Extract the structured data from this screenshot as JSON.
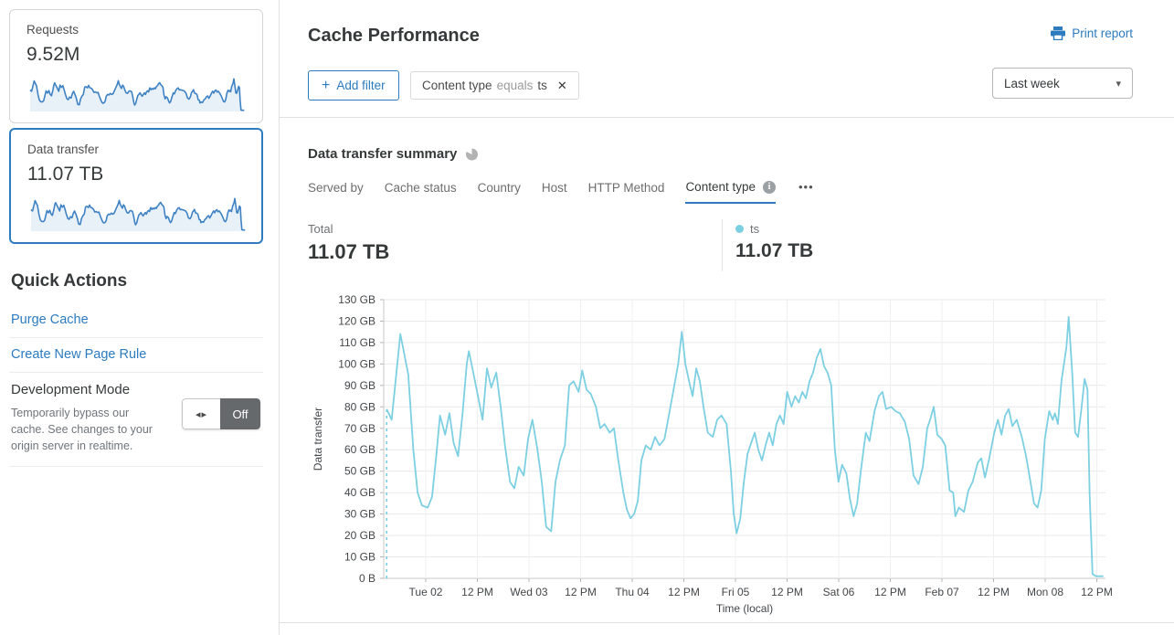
{
  "colors": {
    "accent": "#2c7bbf",
    "series_line": "#7dcfe2",
    "spark_line": "#3e82c4",
    "spark_fill": "#e9f1f8",
    "selected_card_border": "#2f7bbf"
  },
  "icons": {
    "plus": "+",
    "close": "✕",
    "caret": "▾",
    "more": "•••",
    "toggle_arrows": "◂▸",
    "info": "i"
  },
  "sidebar": {
    "cards": [
      {
        "label": "Requests",
        "value": "9.52M",
        "selected": false
      },
      {
        "label": "Data transfer",
        "value": "11.07 TB",
        "selected": true
      }
    ],
    "quick_actions": {
      "title": "Quick Actions",
      "links": [
        "Purge Cache",
        "Create New Page Rule"
      ],
      "dev_mode": {
        "title": "Development Mode",
        "description": "Temporarily bypass our cache. See changes to your origin server in realtime.",
        "toggle_state": "Off"
      }
    }
  },
  "header": {
    "title": "Cache Performance",
    "print_label": "Print report",
    "range_selector": "Last week"
  },
  "filters": {
    "add_label": "Add filter",
    "chips": [
      {
        "field": "Content type",
        "operator": "equals",
        "value": "ts"
      }
    ]
  },
  "summary": {
    "title": "Data transfer summary",
    "tabs": [
      {
        "label": "Served by"
      },
      {
        "label": "Cache status"
      },
      {
        "label": "Country"
      },
      {
        "label": "Host"
      },
      {
        "label": "HTTP Method"
      },
      {
        "label": "Content type",
        "active": true
      }
    ],
    "stats": [
      {
        "label": "Total",
        "value": "11.07 TB"
      },
      {
        "label": "ts",
        "value": "11.07 TB",
        "dot_color": "#7dcfe2"
      }
    ]
  },
  "chart_data": {
    "type": "line",
    "title": "Data transfer summary",
    "ylabel": "Data transfer",
    "xlabel": "Time (local)",
    "ylim": [
      0,
      130
    ],
    "grid": true,
    "legend_position": "top-right",
    "yticks": [
      "0 B",
      "10 GB",
      "20 GB",
      "30 GB",
      "40 GB",
      "50 GB",
      "60 GB",
      "70 GB",
      "80 GB",
      "90 GB",
      "100 GB",
      "110 GB",
      "120 GB",
      "130 GB"
    ],
    "xticks": [
      "Tue 02",
      "12 PM",
      "Wed 03",
      "12 PM",
      "Thu 04",
      "12 PM",
      "Fri 05",
      "12 PM",
      "Sat 06",
      "12 PM",
      "Feb 07",
      "12 PM",
      "Mon 08",
      "12 PM"
    ],
    "series": [
      {
        "name": "ts",
        "color": "#7dcfe2",
        "unit": "GB",
        "dashed_start": true,
        "points": [
          [
            0.004,
            79
          ],
          [
            0.011,
            74
          ],
          [
            0.023,
            114
          ],
          [
            0.034,
            95
          ],
          [
            0.041,
            60
          ],
          [
            0.047,
            40
          ],
          [
            0.053,
            34
          ],
          [
            0.061,
            33
          ],
          [
            0.067,
            38
          ],
          [
            0.073,
            58
          ],
          [
            0.078,
            76
          ],
          [
            0.085,
            67
          ],
          [
            0.091,
            77
          ],
          [
            0.097,
            63
          ],
          [
            0.103,
            57
          ],
          [
            0.109,
            76
          ],
          [
            0.115,
            100
          ],
          [
            0.118,
            106
          ],
          [
            0.124,
            96
          ],
          [
            0.13,
            86
          ],
          [
            0.137,
            74
          ],
          [
            0.143,
            98
          ],
          [
            0.149,
            89
          ],
          [
            0.156,
            96
          ],
          [
            0.162,
            80
          ],
          [
            0.168,
            62
          ],
          [
            0.175,
            45
          ],
          [
            0.181,
            42
          ],
          [
            0.187,
            52
          ],
          [
            0.194,
            48
          ],
          [
            0.2,
            65
          ],
          [
            0.206,
            74
          ],
          [
            0.213,
            60
          ],
          [
            0.219,
            45
          ],
          [
            0.225,
            24
          ],
          [
            0.232,
            22
          ],
          [
            0.238,
            45
          ],
          [
            0.244,
            55
          ],
          [
            0.251,
            62
          ],
          [
            0.257,
            90
          ],
          [
            0.263,
            92
          ],
          [
            0.27,
            87
          ],
          [
            0.275,
            97
          ],
          [
            0.281,
            88
          ],
          [
            0.287,
            86
          ],
          [
            0.294,
            80
          ],
          [
            0.3,
            70
          ],
          [
            0.306,
            72
          ],
          [
            0.313,
            68
          ],
          [
            0.319,
            70
          ],
          [
            0.325,
            55
          ],
          [
            0.332,
            40
          ],
          [
            0.337,
            32
          ],
          [
            0.342,
            28
          ],
          [
            0.347,
            30
          ],
          [
            0.352,
            36
          ],
          [
            0.357,
            55
          ],
          [
            0.363,
            62
          ],
          [
            0.37,
            60
          ],
          [
            0.376,
            66
          ],
          [
            0.382,
            62
          ],
          [
            0.389,
            65
          ],
          [
            0.395,
            76
          ],
          [
            0.401,
            87
          ],
          [
            0.408,
            100
          ],
          [
            0.413,
            115
          ],
          [
            0.418,
            100
          ],
          [
            0.423,
            92
          ],
          [
            0.428,
            85
          ],
          [
            0.433,
            98
          ],
          [
            0.438,
            92
          ],
          [
            0.443,
            80
          ],
          [
            0.449,
            68
          ],
          [
            0.456,
            66
          ],
          [
            0.462,
            74
          ],
          [
            0.468,
            76
          ],
          [
            0.475,
            72
          ],
          [
            0.481,
            50
          ],
          [
            0.485,
            30
          ],
          [
            0.489,
            21
          ],
          [
            0.494,
            28
          ],
          [
            0.499,
            45
          ],
          [
            0.504,
            58
          ],
          [
            0.509,
            63
          ],
          [
            0.514,
            68
          ],
          [
            0.519,
            60
          ],
          [
            0.524,
            55
          ],
          [
            0.529,
            62
          ],
          [
            0.534,
            68
          ],
          [
            0.539,
            62
          ],
          [
            0.544,
            72
          ],
          [
            0.549,
            76
          ],
          [
            0.554,
            72
          ],
          [
            0.559,
            87
          ],
          [
            0.565,
            80
          ],
          [
            0.57,
            85
          ],
          [
            0.575,
            82
          ],
          [
            0.58,
            87
          ],
          [
            0.585,
            84
          ],
          [
            0.59,
            92
          ],
          [
            0.595,
            96
          ],
          [
            0.6,
            103
          ],
          [
            0.605,
            107
          ],
          [
            0.61,
            99
          ],
          [
            0.615,
            96
          ],
          [
            0.62,
            90
          ],
          [
            0.625,
            60
          ],
          [
            0.63,
            45
          ],
          [
            0.635,
            53
          ],
          [
            0.641,
            49
          ],
          [
            0.646,
            37
          ],
          [
            0.651,
            29
          ],
          [
            0.656,
            35
          ],
          [
            0.661,
            50
          ],
          [
            0.666,
            63
          ],
          [
            0.668,
            68
          ],
          [
            0.673,
            64
          ],
          [
            0.68,
            78
          ],
          [
            0.686,
            85
          ],
          [
            0.691,
            87
          ],
          [
            0.696,
            79
          ],
          [
            0.703,
            80
          ],
          [
            0.709,
            78
          ],
          [
            0.715,
            77
          ],
          [
            0.722,
            73
          ],
          [
            0.728,
            65
          ],
          [
            0.734,
            48
          ],
          [
            0.741,
            44
          ],
          [
            0.747,
            52
          ],
          [
            0.753,
            70
          ],
          [
            0.758,
            75
          ],
          [
            0.762,
            80
          ],
          [
            0.767,
            67
          ],
          [
            0.773,
            65
          ],
          [
            0.778,
            62
          ],
          [
            0.784,
            41
          ],
          [
            0.789,
            40
          ],
          [
            0.792,
            29
          ],
          [
            0.797,
            33
          ],
          [
            0.804,
            31
          ],
          [
            0.81,
            41
          ],
          [
            0.816,
            45
          ],
          [
            0.823,
            54
          ],
          [
            0.828,
            56
          ],
          [
            0.833,
            47
          ],
          [
            0.839,
            56
          ],
          [
            0.846,
            68
          ],
          [
            0.851,
            74
          ],
          [
            0.856,
            67
          ],
          [
            0.861,
            76
          ],
          [
            0.866,
            79
          ],
          [
            0.871,
            71
          ],
          [
            0.877,
            74
          ],
          [
            0.884,
            66
          ],
          [
            0.89,
            57
          ],
          [
            0.895,
            47
          ],
          [
            0.901,
            35
          ],
          [
            0.906,
            33
          ],
          [
            0.911,
            41
          ],
          [
            0.916,
            65
          ],
          [
            0.922,
            78
          ],
          [
            0.927,
            74
          ],
          [
            0.93,
            77
          ],
          [
            0.934,
            72
          ],
          [
            0.939,
            92
          ],
          [
            0.946,
            108
          ],
          [
            0.949,
            122
          ],
          [
            0.954,
            95
          ],
          [
            0.958,
            68
          ],
          [
            0.962,
            66
          ],
          [
            0.967,
            80
          ],
          [
            0.971,
            93
          ],
          [
            0.975,
            88
          ],
          [
            0.978,
            40
          ],
          [
            0.982,
            2
          ],
          [
            0.987,
            1
          ],
          [
            0.992,
            1
          ],
          [
            0.997,
            1
          ]
        ]
      }
    ]
  }
}
